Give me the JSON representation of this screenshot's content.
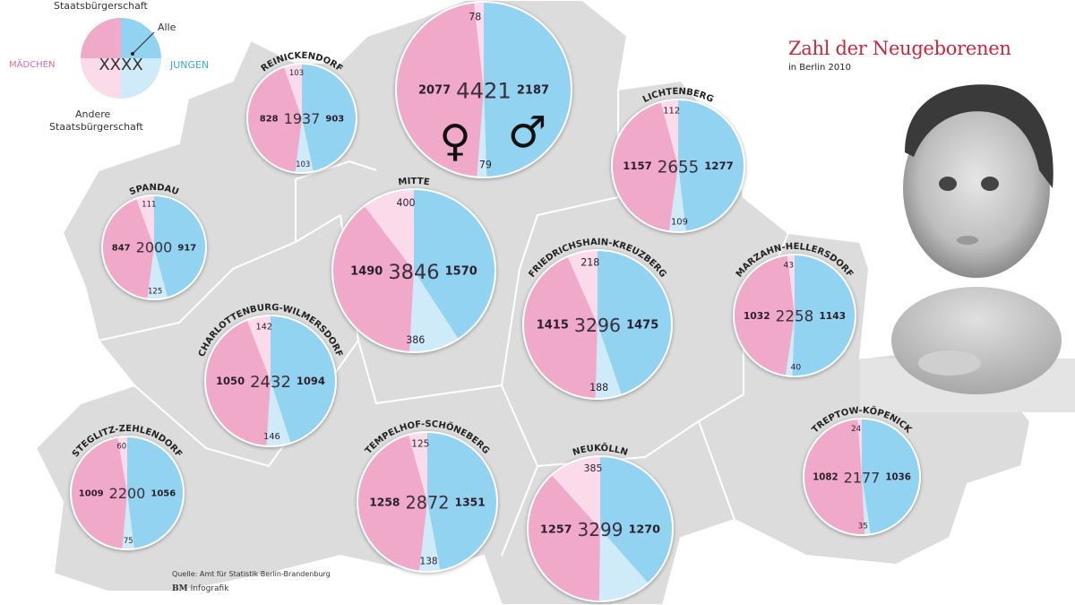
{
  "header": {
    "title": "Zahl der Neugeborenen",
    "subtitle": "in Berlin 2010"
  },
  "legend": {
    "top_label": "Staatsbürgerschaft",
    "bottom_label_1": "Andere",
    "bottom_label_2": "Staatsbürgerschaft",
    "girls_label": "MÄDCHEN",
    "boys_label": "JUNGEN",
    "all_label": "Alle",
    "center_placeholder": "XXXX"
  },
  "footer": {
    "source": "Quelle: Amt für Statistik Berlin-Brandenburg",
    "credit_logo": "BM",
    "credit": "Infografik"
  },
  "colors": {
    "girls_german": "#f0a9c9",
    "girls_other": "#fbdbe9",
    "boys_german": "#92d3f1",
    "boys_other": "#cfeaf8",
    "map": "#dcdcdc",
    "title": "#c8283c"
  },
  "chart_data": {
    "type": "pie",
    "title": "Zahl der Neugeborenen",
    "subtitle": "in Berlin 2010",
    "segments": [
      "Mädchen (Staatsbürgerschaft)",
      "Mädchen (Andere Staatsbürgerschaft)",
      "Jungen (Staatsbürgerschaft)",
      "Jungen (Andere Staatsbürgerschaft)"
    ],
    "districts": [
      {
        "name": "",
        "total": 4421,
        "girls": 2077,
        "girls_other": 78,
        "boys": 2187,
        "boys_other": 79,
        "symbols": true
      },
      {
        "name": "REINICKENDORF",
        "total": 1937,
        "girls": 828,
        "girls_other": 103,
        "boys": 903,
        "boys_other": 103
      },
      {
        "name": "SPANDAU",
        "total": 2000,
        "girls": 847,
        "girls_other": 111,
        "boys": 917,
        "boys_other": 125
      },
      {
        "name": "MITTE",
        "total": 3846,
        "girls": 1490,
        "girls_other": 400,
        "boys": 1570,
        "boys_other": 386
      },
      {
        "name": "LICHTENBERG",
        "total": 2655,
        "girls": 1157,
        "girls_other": 112,
        "boys": 1277,
        "boys_other": 109
      },
      {
        "name": "FRIEDRICHSHAIN-KREUZBERG",
        "total": 3296,
        "girls": 1415,
        "girls_other": 218,
        "boys": 1475,
        "boys_other": 188
      },
      {
        "name": "MARZAHN-HELLERSDORF",
        "total": 2258,
        "girls": 1032,
        "girls_other": 43,
        "boys": 1143,
        "boys_other": 40
      },
      {
        "name": "CHARLOTTENBURG-WILMERSDORF",
        "total": 2432,
        "girls": 1050,
        "girls_other": 142,
        "boys": 1094,
        "boys_other": 146
      },
      {
        "name": "STEGLITZ-ZEHLENDORF",
        "total": 2200,
        "girls": 1009,
        "girls_other": 60,
        "boys": 1056,
        "boys_other": 75
      },
      {
        "name": "TEMPELHOF-SCHÖNEBERG",
        "total": 2872,
        "girls": 1258,
        "girls_other": 125,
        "boys": 1351,
        "boys_other": 138
      },
      {
        "name": "NEUKÖLLN",
        "total": 3299,
        "girls": 1257,
        "girls_other": 385,
        "boys": 1270,
        "boys_other": null
      },
      {
        "name": "TREPTOW-KÖPENICK",
        "total": 2177,
        "girls": 1082,
        "girls_other": 24,
        "boys": 1036,
        "boys_other": 35
      }
    ]
  }
}
